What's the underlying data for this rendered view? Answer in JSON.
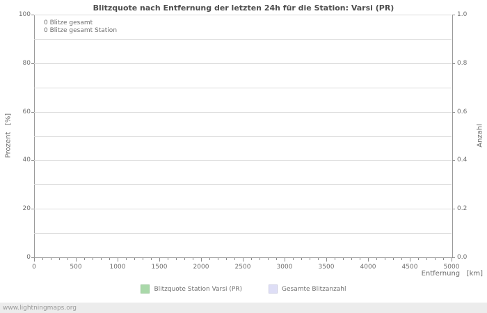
{
  "chart_data": {
    "type": "line",
    "title": "Blitzquote nach Entfernung der letzten 24h für die Station: Varsi (PR)",
    "xlabel": "Entfernung   [km]",
    "ylabel_left": "Prozent   [%]",
    "ylabel_right": "Anzahl",
    "xlim": [
      0,
      5000
    ],
    "ylim_left": [
      0,
      100
    ],
    "ylim_right": [
      0.0,
      1.0
    ],
    "x_major_step": 500,
    "x_minor_step": 100,
    "y_grid_step": 10,
    "grid": true,
    "x_ticks": [
      0,
      500,
      1000,
      1500,
      2000,
      2500,
      3000,
      3500,
      4000,
      4500,
      5000
    ],
    "y_left_ticks": [
      0,
      20,
      40,
      60,
      80,
      100
    ],
    "y_right_ticks": [
      "0.0",
      "0.2",
      "0.4",
      "0.6",
      "0.8",
      "1.0"
    ],
    "legend_position": "bottom-center",
    "annotations": {
      "total": "0 Blitze gesamt",
      "station": "0 Blitze gesamt Station"
    },
    "series": [
      {
        "name": "Blitzquote Station Varsi (PR)",
        "color": "#a9d8a9",
        "values": []
      },
      {
        "name": "Gesamte Blitzanzahl",
        "color": "#dedef6",
        "values": []
      }
    ]
  },
  "watermark": "www.lightningmaps.org"
}
